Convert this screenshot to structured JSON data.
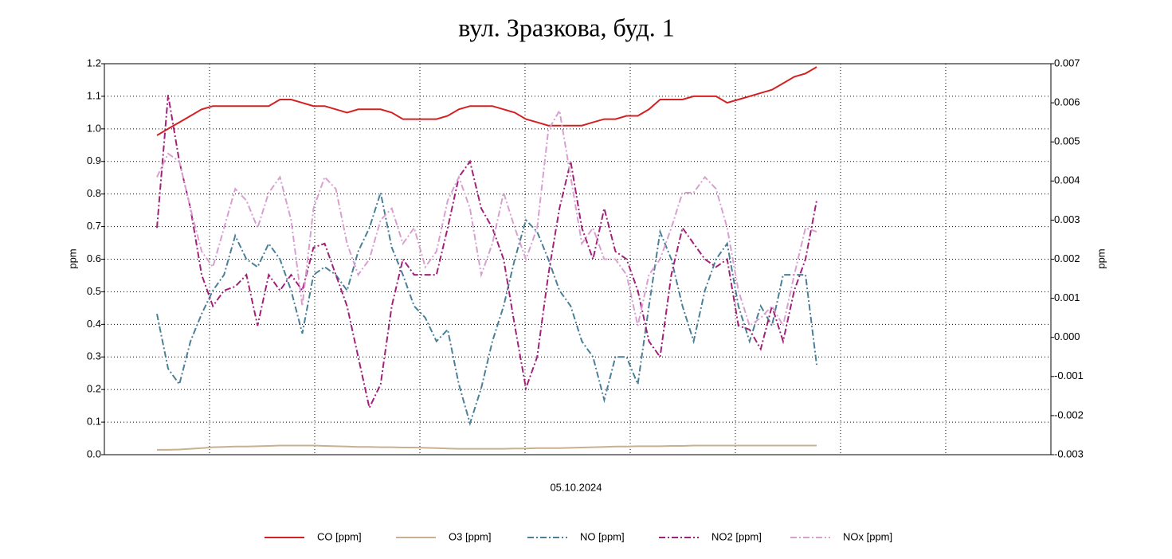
{
  "chart_data": {
    "type": "line",
    "title": "вул. Зразкова, буд. 1",
    "x_label": "05.10.2024",
    "y_label": "ppm",
    "y2_label": "ppm",
    "ylim": [
      0,
      1.2
    ],
    "yticks": [
      {
        "value": 0,
        "label": "0.0"
      },
      0.1,
      0.2,
      0.3,
      0.4,
      0.5,
      0.6,
      0.7,
      0.8,
      0.9,
      {
        "value": 1,
        "label": "1.0"
      },
      1.1,
      1.2
    ],
    "y2lim": [
      -0.003,
      0.007
    ],
    "y2ticks": [
      -0.003,
      -0.002,
      -0.001,
      {
        "value": 0,
        "label": "0.000"
      },
      0.001,
      0.002,
      0.003,
      0.004,
      0.005,
      0.006,
      0.007
    ],
    "grid": true,
    "legend": "bottom",
    "series": [
      {
        "name": "CO [ppm]",
        "color": "#d42020",
        "style": "solid",
        "values": [
          0.98,
          1.0,
          1.02,
          1.04,
          1.06,
          1.07,
          1.07,
          1.07,
          1.07,
          1.07,
          1.07,
          1.09,
          1.09,
          1.08,
          1.07,
          1.07,
          1.06,
          1.05,
          1.06,
          1.06,
          1.06,
          1.05,
          1.03,
          1.03,
          1.03,
          1.03,
          1.04,
          1.06,
          1.07,
          1.07,
          1.07,
          1.06,
          1.05,
          1.03,
          1.02,
          1.01,
          1.01,
          1.01,
          1.01,
          1.02,
          1.03,
          1.03,
          1.04,
          1.04,
          1.06,
          1.09,
          1.09,
          1.09,
          1.1,
          1.1,
          1.1,
          1.08,
          1.09,
          1.1,
          1.11,
          1.12,
          1.14,
          1.16,
          1.17,
          1.19
        ]
      },
      {
        "name": "O3 [ppm]",
        "color": "#c8b090",
        "style": "solid",
        "values": [
          0.015,
          0.015,
          0.016,
          0.018,
          0.02,
          0.023,
          0.024,
          0.025,
          0.025,
          0.026,
          0.027,
          0.028,
          0.028,
          0.028,
          0.028,
          0.027,
          0.026,
          0.025,
          0.024,
          0.024,
          0.023,
          0.023,
          0.022,
          0.022,
          0.021,
          0.02,
          0.019,
          0.018,
          0.018,
          0.018,
          0.018,
          0.018,
          0.019,
          0.019,
          0.02,
          0.02,
          0.02,
          0.021,
          0.022,
          0.023,
          0.024,
          0.025,
          0.025,
          0.026,
          0.026,
          0.026,
          0.027,
          0.027,
          0.028,
          0.028,
          0.028,
          0.028,
          0.028,
          0.028,
          0.028,
          0.028,
          0.028,
          0.028,
          0.028,
          0.028
        ]
      },
      {
        "name": "NO [ppm]",
        "color": "#4a7f98",
        "style": "dashdot",
        "axis": "y2",
        "values": [
          0.0006,
          -0.0008,
          -0.0012,
          -0.0001,
          0.0006,
          0.0012,
          0.0016,
          0.0026,
          0.002,
          0.0018,
          0.0024,
          0.002,
          0.0012,
          0.0001,
          0.0016,
          0.0018,
          0.0016,
          0.0012,
          0.0022,
          0.0028,
          0.0037,
          0.0023,
          0.0016,
          0.0008,
          0.0005,
          -0.0001,
          0.0002,
          -0.0012,
          -0.0022,
          -0.0013,
          -0.0001,
          0.0008,
          0.002,
          0.003,
          0.0027,
          0.002,
          0.0012,
          0.0008,
          -0.0001,
          -0.0005,
          -0.0016,
          -0.0005,
          -0.0005,
          -0.0012,
          0.0008,
          0.0027,
          0.002,
          0.0008,
          -0.0001,
          0.0012,
          0.002,
          0.0024,
          0.0008,
          -0.0001,
          0.0008,
          0.0003,
          0.0016,
          0.0016,
          0.0016,
          -0.0007
        ]
      },
      {
        "name": "NO2 [ppm]",
        "color": "#a0207a",
        "style": "dashdot",
        "axis": "y2",
        "values": [
          0.0028,
          0.0062,
          0.0045,
          0.0033,
          0.0016,
          0.0008,
          0.0012,
          0.0013,
          0.0016,
          0.0003,
          0.0016,
          0.0012,
          0.0016,
          0.0012,
          0.0023,
          0.0024,
          0.0016,
          0.0008,
          -0.0005,
          -0.0018,
          -0.0012,
          0.0008,
          0.002,
          0.0016,
          0.0016,
          0.0016,
          0.0028,
          0.0041,
          0.0045,
          0.0033,
          0.0028,
          0.002,
          0.0003,
          -0.0013,
          -0.0005,
          0.0016,
          0.0033,
          0.0045,
          0.0028,
          0.002,
          0.0033,
          0.0022,
          0.002,
          0.0012,
          -0.0001,
          -0.0005,
          0.0016,
          0.0028,
          0.0024,
          0.002,
          0.0018,
          0.002,
          0.0003,
          0.0002,
          -0.0003,
          0.0008,
          -0.0001,
          0.0012,
          0.002,
          0.0035
        ]
      },
      {
        "name": "NOx [ppm]",
        "color": "#d8a0d0",
        "style": "dashdot",
        "axis": "y2",
        "values": [
          0.0041,
          0.0047,
          0.0045,
          0.0033,
          0.0022,
          0.0018,
          0.0028,
          0.0038,
          0.0035,
          0.0028,
          0.0037,
          0.0041,
          0.003,
          0.0008,
          0.0033,
          0.0041,
          0.0038,
          0.0024,
          0.0016,
          0.002,
          0.003,
          0.0033,
          0.0024,
          0.0028,
          0.0018,
          0.0022,
          0.0035,
          0.0041,
          0.0033,
          0.0016,
          0.0024,
          0.0037,
          0.0028,
          0.002,
          0.0028,
          0.0053,
          0.0058,
          0.0041,
          0.0024,
          0.0028,
          0.002,
          0.002,
          0.0016,
          0.0003,
          0.0016,
          0.002,
          0.0028,
          0.0037,
          0.0037,
          0.0041,
          0.0038,
          0.0028,
          0.0012,
          0.0003,
          0.0005,
          0.0008,
          0.0003,
          0.0016,
          0.0028,
          0.0027
        ]
      }
    ]
  }
}
